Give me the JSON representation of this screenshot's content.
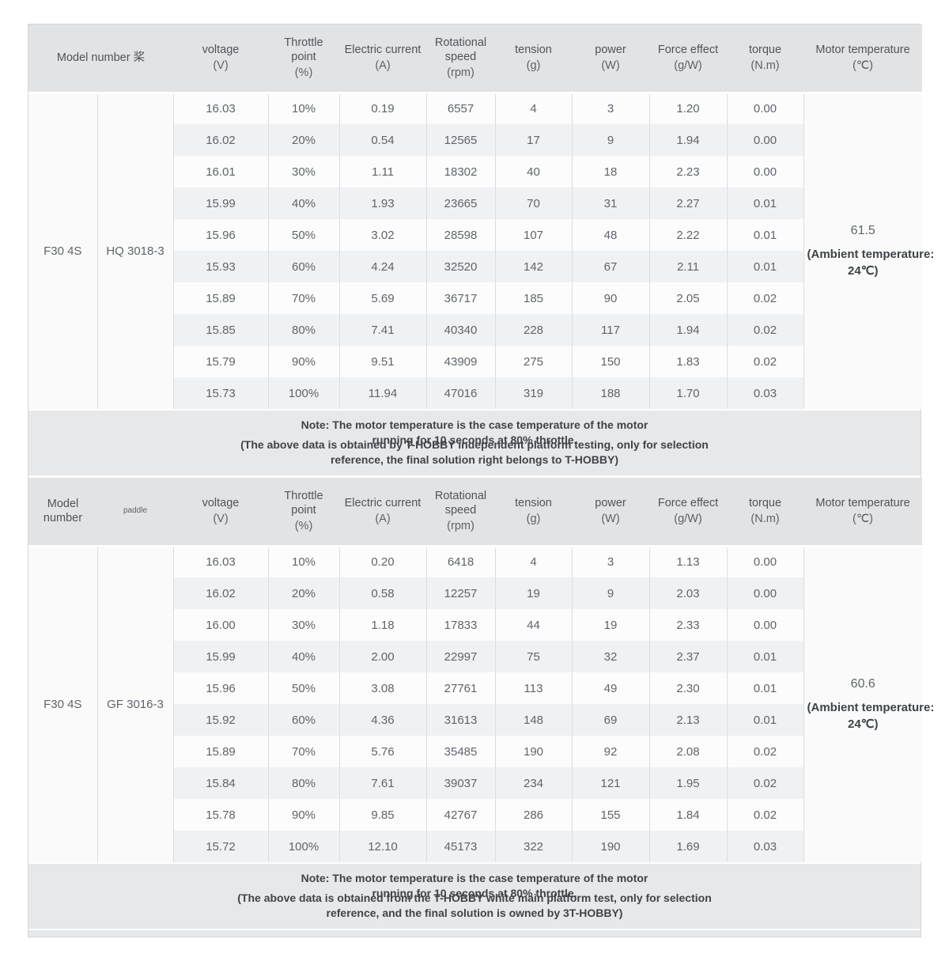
{
  "columns": [
    {
      "key": "voltage",
      "label": "voltage",
      "unit": "(V)"
    },
    {
      "key": "throttle",
      "label": "Throttle point",
      "unit": "(%)"
    },
    {
      "key": "current",
      "label": "Electric current",
      "unit": "(A)"
    },
    {
      "key": "rpm",
      "label": "Rotational speed",
      "unit": "(rpm)"
    },
    {
      "key": "tension",
      "label": "tension",
      "unit": "(g)"
    },
    {
      "key": "power",
      "label": "power",
      "unit": "(W)"
    },
    {
      "key": "force",
      "label": "Force effect",
      "unit": "(g/W)"
    },
    {
      "key": "torque",
      "label": "torque",
      "unit": "(N.m)"
    },
    {
      "key": "temp",
      "label": "Motor temperature",
      "unit": "(℃)"
    }
  ],
  "colors": {
    "header_bg": "#e2e3e5",
    "note_bg": "#e7e8ea",
    "row_base": "#fcfcfd",
    "row_alt": "#f0f1f3",
    "side_bg": "#fafafb",
    "divider": "#dcdde0",
    "text": "#5f646b",
    "note_text": "#3f4348"
  },
  "tables": [
    {
      "model_header": "Model number 桨",
      "model": "F30 4S",
      "paddle": "HQ 3018-3",
      "temp_value": "61.5",
      "ambient_line1": "(Ambient temperature:",
      "ambient_line2": "24℃)",
      "rows": [
        [
          "16.03",
          "10%",
          "0.19",
          "6557",
          "4",
          "3",
          "1.20",
          "0.00"
        ],
        [
          "16.02",
          "20%",
          "0.54",
          "12565",
          "17",
          "9",
          "1.94",
          "0.00"
        ],
        [
          "16.01",
          "30%",
          "1.11",
          "18302",
          "40",
          "18",
          "2.23",
          "0.00"
        ],
        [
          "15.99",
          "40%",
          "1.93",
          "23665",
          "70",
          "31",
          "2.27",
          "0.01"
        ],
        [
          "15.96",
          "50%",
          "3.02",
          "28598",
          "107",
          "48",
          "2.22",
          "0.01"
        ],
        [
          "15.93",
          "60%",
          "4.24",
          "32520",
          "142",
          "67",
          "2.11",
          "0.01"
        ],
        [
          "15.89",
          "70%",
          "5.69",
          "36717",
          "185",
          "90",
          "2.05",
          "0.02"
        ],
        [
          "15.85",
          "80%",
          "7.41",
          "40340",
          "228",
          "117",
          "1.94",
          "0.02"
        ],
        [
          "15.79",
          "90%",
          "9.51",
          "43909",
          "275",
          "150",
          "1.83",
          "0.02"
        ],
        [
          "15.73",
          "100%",
          "11.94",
          "47016",
          "319",
          "188",
          "1.70",
          "0.03"
        ]
      ],
      "note": {
        "line1": "Note: The motor temperature is the case temperature of the motor",
        "line2": "running for 10 seconds at 80% throttle.",
        "line3": "(The above data is obtained by T-HOBBY independent platform testing, only for selection",
        "line4": "reference, the final solution right belongs to T-HOBBY)"
      }
    },
    {
      "model_header": "Model number",
      "paddle_header": "paddle",
      "model": "F30 4S",
      "paddle": "GF 3016-3",
      "temp_value": "60.6",
      "ambient_line1": "(Ambient temperature:",
      "ambient_line2": "24℃)",
      "rows": [
        [
          "16.03",
          "10%",
          "0.20",
          "6418",
          "4",
          "3",
          "1.13",
          "0.00"
        ],
        [
          "16.02",
          "20%",
          "0.58",
          "12257",
          "19",
          "9",
          "2.03",
          "0.00"
        ],
        [
          "16.00",
          "30%",
          "1.18",
          "17833",
          "44",
          "19",
          "2.33",
          "0.00"
        ],
        [
          "15.99",
          "40%",
          "2.00",
          "22997",
          "75",
          "32",
          "2.37",
          "0.01"
        ],
        [
          "15.96",
          "50%",
          "3.08",
          "27761",
          "113",
          "49",
          "2.30",
          "0.01"
        ],
        [
          "15.92",
          "60%",
          "4.36",
          "31613",
          "148",
          "69",
          "2.13",
          "0.01"
        ],
        [
          "15.89",
          "70%",
          "5.76",
          "35485",
          "190",
          "92",
          "2.08",
          "0.02"
        ],
        [
          "15.84",
          "80%",
          "7.61",
          "39037",
          "234",
          "121",
          "1.95",
          "0.02"
        ],
        [
          "15.78",
          "90%",
          "9.85",
          "42767",
          "286",
          "155",
          "1.84",
          "0.02"
        ],
        [
          "15.72",
          "100%",
          "12.10",
          "45173",
          "322",
          "190",
          "1.69",
          "0.03"
        ]
      ],
      "note": {
        "line1": "Note: The motor temperature is the case temperature of the motor",
        "line2": "running for 10 seconds at 80% throttle.",
        "line3": "(The above data is obtained from the T-HOBBY white main platform test, only for selection",
        "line4": "reference, and the final solution is owned by 3T-HOBBY)"
      }
    }
  ]
}
